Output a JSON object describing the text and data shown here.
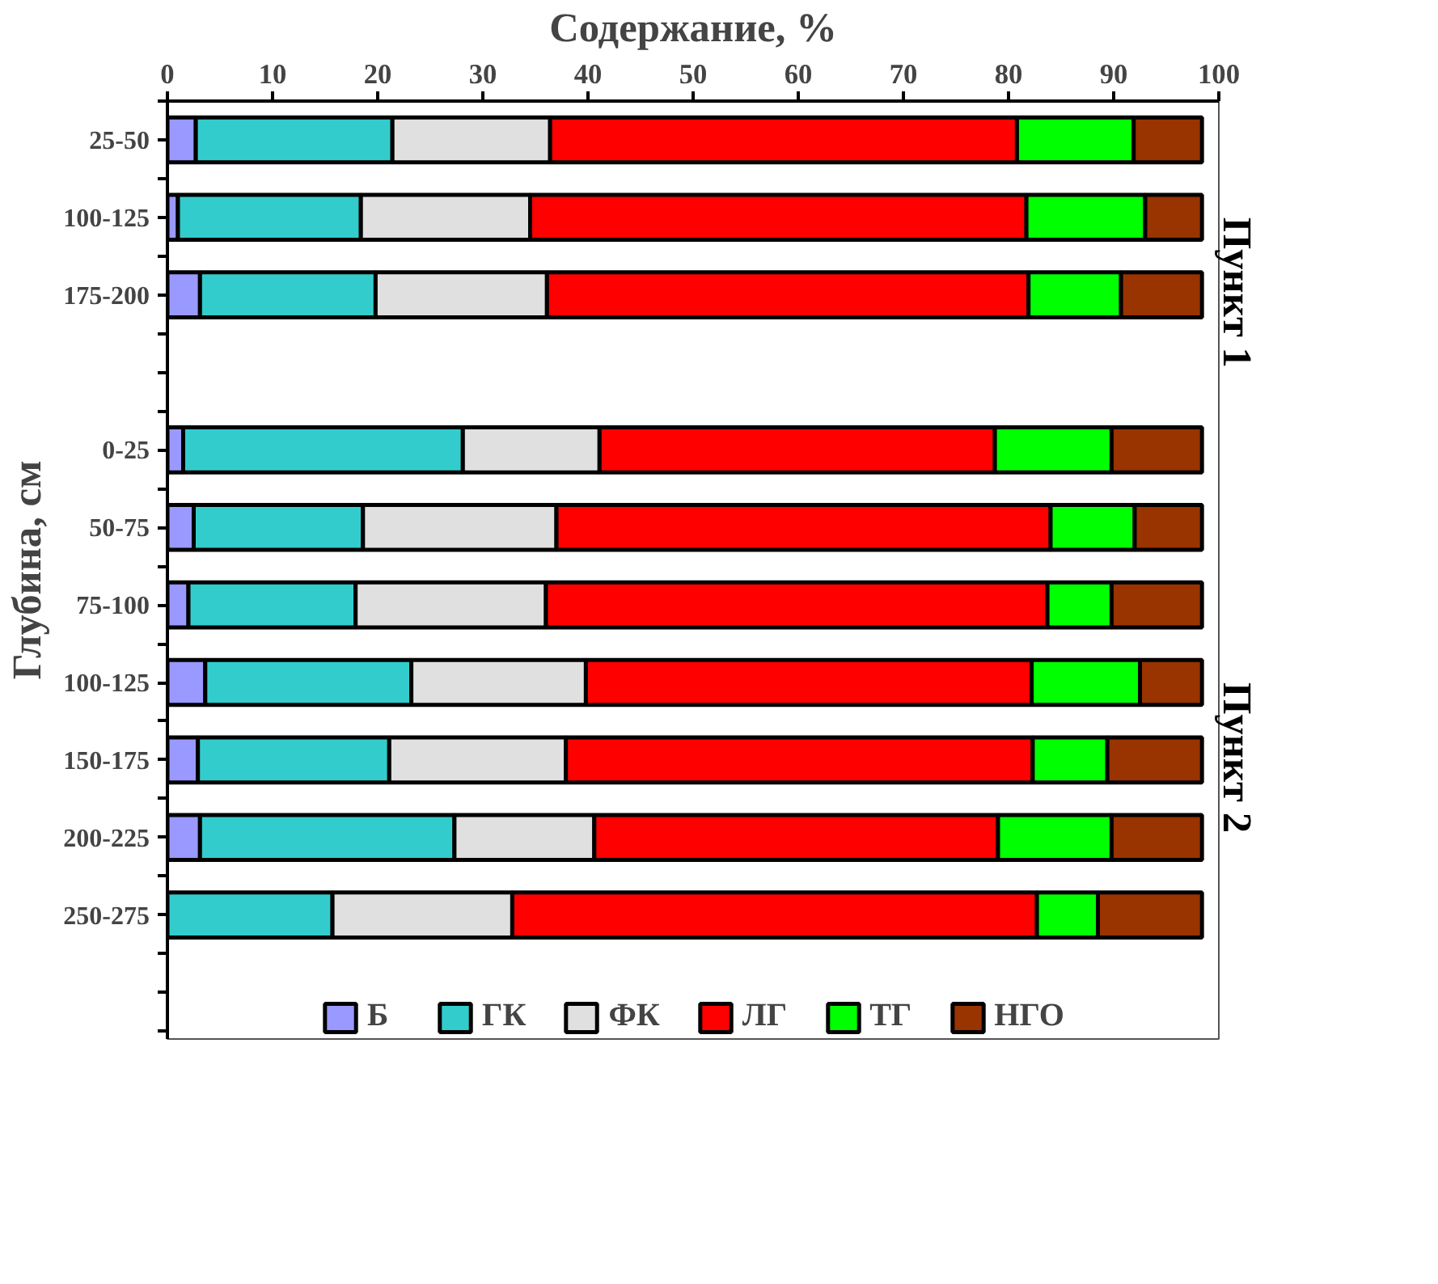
{
  "chart_data": {
    "type": "bar",
    "orientation": "horizontal",
    "stacked": true,
    "xlabel": "Содержание, %",
    "ylabel": "Глубина, см",
    "categories": [
      "25-50",
      "100-125",
      "175-200",
      null,
      "0-25",
      "50-75",
      "75-100",
      "100-125",
      "150-175",
      "200-225",
      "250-275",
      null
    ],
    "series": [
      {
        "name": "Б",
        "color": "#9999ff",
        "values": [
          2.7,
          1.0,
          3.1,
          null,
          1.5,
          2.5,
          2.0,
          3.6,
          2.9,
          3.1,
          null,
          null
        ]
      },
      {
        "name": "ГК",
        "color": "#33cccc",
        "values": [
          18.7,
          17.4,
          16.7,
          null,
          26.6,
          16.1,
          15.9,
          19.6,
          18.2,
          24.2,
          15.7,
          null
        ]
      },
      {
        "name": "ФК",
        "color": "#e0e0e0",
        "values": [
          15.0,
          16.1,
          16.3,
          null,
          13.0,
          18.4,
          18.1,
          16.6,
          16.8,
          13.3,
          17.1,
          null
        ]
      },
      {
        "name": "ЛГ",
        "color": "#ff0000",
        "values": [
          44.4,
          47.2,
          45.8,
          null,
          37.6,
          47.0,
          47.7,
          42.4,
          44.4,
          38.4,
          49.9,
          null
        ]
      },
      {
        "name": "ТГ",
        "color": "#00ff00",
        "values": [
          11.1,
          11.3,
          8.8,
          null,
          11.1,
          8.0,
          6.1,
          10.3,
          7.1,
          10.8,
          5.8,
          null
        ]
      },
      {
        "name": "НГО",
        "color": "#993300",
        "values": [
          6.5,
          5.4,
          7.7,
          null,
          8.6,
          6.4,
          8.6,
          5.9,
          9.0,
          8.6,
          9.9,
          null
        ]
      }
    ],
    "xlim": [
      0,
      100
    ],
    "xticks": [
      0,
      10,
      20,
      30,
      40,
      50,
      60,
      70,
      80,
      90,
      100
    ],
    "annotations": [
      "Пункт 1",
      "Пункт 2"
    ],
    "grid": false,
    "legend": "bottom"
  }
}
